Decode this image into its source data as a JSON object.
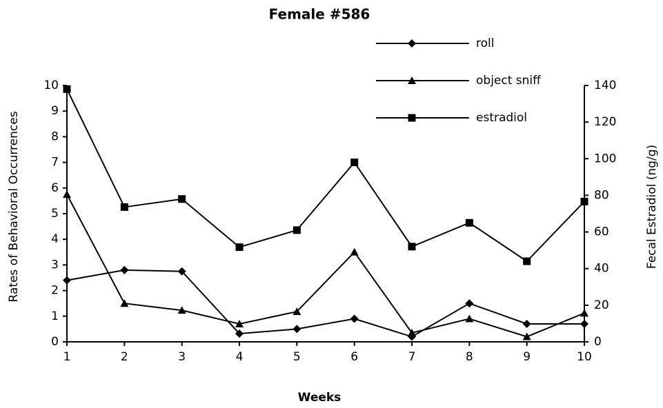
{
  "chart_data": {
    "type": "line",
    "title": "Female #586",
    "xlabel": "Weeks",
    "ylabel": "Rates of Behavioral Occurrences",
    "y2label": "Fecal Estradiol (ng/g)",
    "x": [
      1,
      2,
      3,
      4,
      5,
      6,
      7,
      8,
      9,
      10
    ],
    "xlim": [
      1,
      10
    ],
    "xticks": [
      1,
      2,
      3,
      4,
      5,
      6,
      7,
      8,
      9,
      10
    ],
    "ylim": [
      0,
      10
    ],
    "yticks": [
      0,
      1,
      2,
      3,
      4,
      5,
      6,
      7,
      8,
      9,
      10
    ],
    "y2lim": [
      0,
      140
    ],
    "y2ticks": [
      0,
      20,
      40,
      60,
      80,
      100,
      120,
      140
    ],
    "legend": "top-right",
    "grid": false,
    "series": [
      {
        "name": "roll",
        "color": "#000000",
        "marker": "diamond",
        "values": [
          2.4,
          2.8,
          2.75,
          0.32,
          0.5,
          0.9,
          0.2,
          1.5,
          0.7,
          0.7
        ]
      },
      {
        "name": "object sniff",
        "color": "#000000",
        "marker": "triangle",
        "values": [
          5.75,
          1.5,
          1.23,
          0.7,
          1.18,
          3.5,
          0.35,
          0.9,
          0.2,
          1.12
        ]
      },
      {
        "name": "estradiol",
        "color": "#000000",
        "marker": "square",
        "axis": "y2",
        "values": [
          138,
          73.6,
          78,
          51.7,
          61,
          98,
          52,
          65,
          44,
          76.6
        ]
      }
    ]
  }
}
